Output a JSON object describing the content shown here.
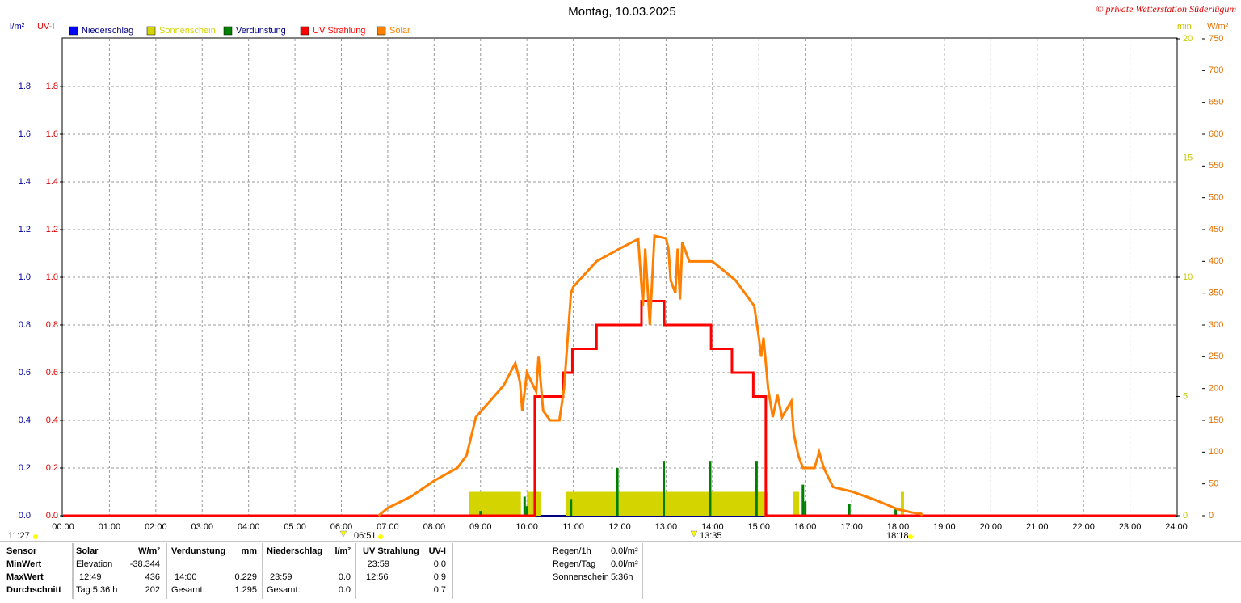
{
  "chart_data": {
    "type": "line",
    "title": "Montag, 10.03.2025",
    "credit": "© private Wetterstation Süderlügum",
    "ylabel": "l/m²",
    "uv_label": "UV-I",
    "y2label": "min",
    "y3label": "W/m²",
    "grid": true,
    "xlim": [
      0,
      24
    ],
    "xticks": [
      {
        "value": 0,
        "label": "00:00"
      },
      {
        "value": 1,
        "label": "01:00"
      },
      {
        "value": 2,
        "label": "02:00"
      },
      {
        "value": 3,
        "label": "03:00"
      },
      {
        "value": 4,
        "label": "04:00"
      },
      {
        "value": 5,
        "label": "05:00"
      },
      {
        "value": 6,
        "label": "06:00"
      },
      {
        "value": 7,
        "label": "07:00"
      },
      {
        "value": 8,
        "label": "08:00"
      },
      {
        "value": 9,
        "label": "09:00"
      },
      {
        "value": 10,
        "label": "10:00"
      },
      {
        "value": 11,
        "label": "11:00"
      },
      {
        "value": 12,
        "label": "12:00"
      },
      {
        "value": 13,
        "label": "13:00"
      },
      {
        "value": 14,
        "label": "14:00"
      },
      {
        "value": 15,
        "label": "15:00"
      },
      {
        "value": 16,
        "label": "16:00"
      },
      {
        "value": 17,
        "label": "17:00"
      },
      {
        "value": 18,
        "label": "18:00"
      },
      {
        "value": 19,
        "label": "19:00"
      },
      {
        "value": 20,
        "label": "20:00"
      },
      {
        "value": 21,
        "label": "21:00"
      },
      {
        "value": 22,
        "label": "22:00"
      },
      {
        "value": 23,
        "label": "23:00"
      },
      {
        "value": 24,
        "label": "24:00"
      }
    ],
    "ylim": [
      0,
      2
    ],
    "yticks": [
      {
        "value": 0,
        "label": "0.0"
      },
      0.2,
      0.4,
      0.6,
      0.8,
      {
        "value": 1,
        "label": "1.0"
      },
      1.2,
      1.4,
      1.6,
      1.8
    ],
    "y2lim": [
      0,
      20
    ],
    "y2ticks": [
      0,
      5,
      10,
      15,
      20
    ],
    "y3lim": [
      0,
      750
    ],
    "y3ticks": [
      0,
      50,
      100,
      150,
      200,
      250,
      300,
      350,
      400,
      450,
      500,
      550,
      600,
      650,
      700,
      750
    ],
    "series": [
      {
        "name": "Niederschlag",
        "color": "#0000ff",
        "type": "line",
        "axis": "y",
        "x": [
          20.6,
          24
        ],
        "values": [
          0,
          0
        ]
      },
      {
        "name": "Sonnenschein",
        "color": "#d4d400",
        "type": "bar",
        "axis": "y2",
        "x": [
          8.76,
          10.0,
          10.07,
          10.85,
          15.74,
          18.06
        ],
        "x_end": [
          9.87,
          10.07,
          10.31,
          15.2,
          15.87,
          18.13
        ],
        "values": [
          1,
          1,
          1,
          1,
          1,
          1
        ]
      },
      {
        "name": "Verdunstung",
        "color": "#008000",
        "type": "bar",
        "axis": "y",
        "x": [
          9.0,
          9.95,
          10.0,
          10.95,
          11.95,
          12.95,
          13.95,
          14.95,
          15.95,
          16.0,
          16.95,
          17.95
        ],
        "values": [
          0.02,
          0.08,
          0.04,
          0.07,
          0.2,
          0.23,
          0.23,
          0.23,
          0.13,
          0.06,
          0.05,
          0.03
        ]
      },
      {
        "name": "UV Strahlung",
        "color": "#ff0000",
        "type": "step",
        "axis": "y",
        "x": [
          0,
          10.17,
          10.78,
          10.98,
          11.5,
          12.47,
          12.96,
          13.97,
          14.42,
          14.88,
          15.15,
          24
        ],
        "values": [
          0,
          0.5,
          0.6,
          0.7,
          0.8,
          0.9,
          0.8,
          0.7,
          0.6,
          0.5,
          0,
          0
        ]
      },
      {
        "name": "Solar",
        "color": "#ff8000",
        "type": "line",
        "axis": "y3",
        "x": [
          6.8,
          7.0,
          7.5,
          8.0,
          8.5,
          8.7,
          8.85,
          8.9,
          9.5,
          9.75,
          9.85,
          9.9,
          10.0,
          10.2,
          10.25,
          10.35,
          10.5,
          10.7,
          10.8,
          10.95,
          11.0,
          11.5,
          12.0,
          12.4,
          12.5,
          12.55,
          12.65,
          12.75,
          13.0,
          13.05,
          13.1,
          13.2,
          13.25,
          13.3,
          13.35,
          13.5,
          14.0,
          14.5,
          14.8,
          14.9,
          15.0,
          15.05,
          15.1,
          15.2,
          15.3,
          15.4,
          15.5,
          15.7,
          15.75,
          15.85,
          15.95,
          16.2,
          16.3,
          16.4,
          16.6,
          17.0,
          17.5,
          18.0,
          18.3,
          18.5,
          18.52
        ],
        "values": [
          0,
          12,
          30,
          55,
          75,
          95,
          140,
          155,
          205,
          240,
          210,
          165,
          225,
          195,
          250,
          165,
          150,
          150,
          200,
          350,
          360,
          400,
          420,
          435,
          330,
          420,
          300,
          440,
          436,
          420,
          370,
          350,
          420,
          340,
          430,
          400,
          400,
          370,
          340,
          330,
          280,
          250,
          280,
          200,
          155,
          190,
          155,
          180,
          130,
          95,
          75,
          75,
          100,
          75,
          45,
          38,
          25,
          10,
          5,
          3,
          0
        ]
      }
    ],
    "annotations": [
      "11:27",
      "06:51",
      "13:35",
      "18:18"
    ]
  },
  "table": {
    "rows": [
      [
        "Sensor",
        "Solar",
        "W/m²",
        "Verdunstung",
        "mm",
        "Niederschlag",
        "l/m²",
        "UV Strahlung",
        "UV-I",
        "Regen/1h",
        "0.0l/m²"
      ],
      [
        "MinWert",
        "Elevation",
        "-38.344",
        null,
        null,
        null,
        null,
        "23:59",
        "0.0",
        "Regen/Tag",
        "0.0l/m²"
      ],
      [
        "MaxWert",
        "12:49",
        "436",
        "14:00",
        "0.229",
        "23:59",
        "0.0",
        "12:56",
        "0.9",
        "Sonnenschein",
        "5:36h"
      ],
      [
        "Durchschnitt",
        "Tag:5:36 h",
        "202",
        "Gesamt:",
        "1.295",
        "Gesamt:",
        "0.0",
        null,
        "0.7",
        null,
        null
      ]
    ]
  }
}
